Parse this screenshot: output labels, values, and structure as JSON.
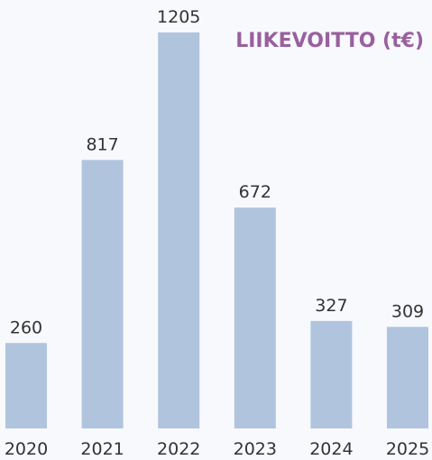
{
  "chart_data": {
    "type": "bar",
    "title": "LIIKEVOITTO (t€)",
    "categories": [
      "2020",
      "2021",
      "2022",
      "2023",
      "2024",
      "2025"
    ],
    "values": [
      260,
      817,
      1205,
      672,
      327,
      309
    ],
    "color": "#b0c4de",
    "title_color": "#98609d"
  }
}
